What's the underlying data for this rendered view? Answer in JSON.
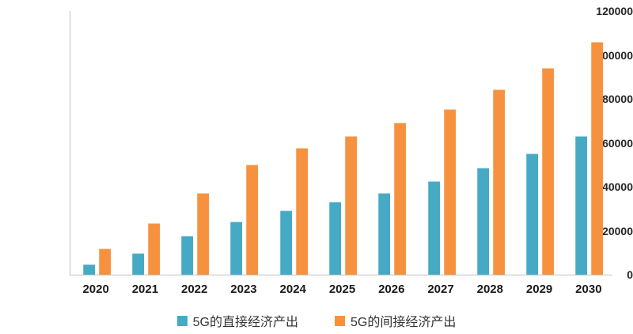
{
  "chart_data": {
    "type": "bar",
    "title": "",
    "xlabel": "",
    "ylabel": "",
    "categories": [
      "2020",
      "2021",
      "2022",
      "2023",
      "2024",
      "2025",
      "2026",
      "2027",
      "2028",
      "2029",
      "2030"
    ],
    "series": [
      {
        "name": "5G的直接经济产出",
        "color": "#47AAC5",
        "values": [
          4840,
          9900,
          17500,
          24300,
          29100,
          33000,
          37200,
          42500,
          48700,
          55200,
          63000
        ]
      },
      {
        "name": "5G的间接经济产出",
        "color": "#F6923F",
        "values": [
          12000,
          23300,
          37300,
          50000,
          57500,
          63000,
          69200,
          75300,
          84400,
          94200,
          106000
        ]
      }
    ],
    "ylim": [
      0,
      120000
    ],
    "yticks": [
      0,
      20000,
      40000,
      60000,
      80000,
      100000,
      120000
    ],
    "grid": false,
    "legend_position": "bottom",
    "axis_color": "#BFBFBF",
    "tick_color": "#262626"
  }
}
